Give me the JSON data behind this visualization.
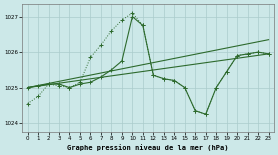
{
  "title": "Graphe pression niveau de la mer (hPa)",
  "bg_color": "#cce8e8",
  "grid_color": "#aacccc",
  "line_color": "#2d6a2d",
  "xlim": [
    -0.5,
    23.5
  ],
  "ylim": [
    1023.75,
    1027.35
  ],
  "yticks": [
    1024,
    1025,
    1026,
    1027
  ],
  "xticks": [
    0,
    1,
    2,
    3,
    4,
    5,
    6,
    7,
    8,
    9,
    10,
    11,
    12,
    13,
    14,
    15,
    16,
    17,
    18,
    19,
    20,
    21,
    22,
    23
  ],
  "line_dotted": {
    "x": [
      0,
      1,
      2,
      3,
      4,
      5,
      6,
      7,
      8,
      9,
      10,
      11,
      12,
      13,
      14,
      15,
      16,
      17,
      18,
      19,
      20,
      21,
      22,
      23
    ],
    "y": [
      1024.55,
      1024.75,
      1025.1,
      1025.05,
      1025.0,
      1025.15,
      1025.85,
      1026.2,
      1026.6,
      1026.9,
      1027.1,
      1026.75,
      1025.35,
      1025.25,
      1025.2,
      1025.0,
      1024.35,
      1024.25,
      1025.0,
      1025.45,
      1025.9,
      1025.95,
      1026.0,
      1025.95
    ]
  },
  "line_solid_spiky": {
    "x": [
      0,
      1,
      2,
      3,
      4,
      5,
      6,
      7,
      8,
      9,
      10,
      11,
      12,
      13,
      14,
      15,
      16,
      17,
      18,
      19,
      20,
      21,
      22,
      23
    ],
    "y": [
      1025.0,
      1025.05,
      1025.1,
      1025.1,
      1025.0,
      1025.1,
      1025.15,
      1025.3,
      1025.5,
      1025.75,
      1027.0,
      1026.75,
      1025.35,
      1025.25,
      1025.2,
      1025.0,
      1024.35,
      1024.25,
      1025.0,
      1025.45,
      1025.9,
      1025.95,
      1026.0,
      1025.95
    ]
  },
  "line_trend_high": {
    "x": [
      0,
      23
    ],
    "y": [
      1025.0,
      1026.35
    ]
  },
  "line_trend_low": {
    "x": [
      0,
      23
    ],
    "y": [
      1025.0,
      1025.95
    ]
  }
}
